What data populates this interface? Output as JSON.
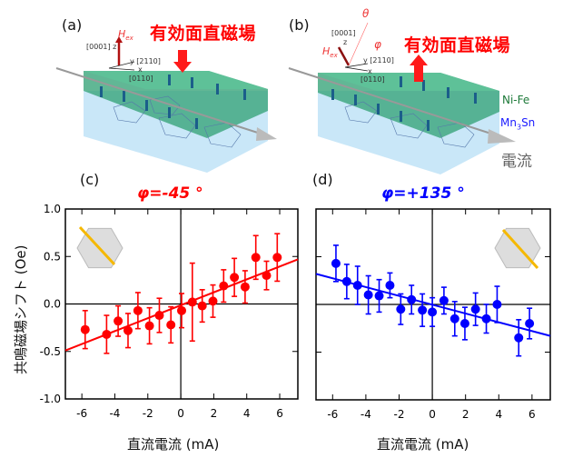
{
  "panels": {
    "a": {
      "label": "(a)",
      "field_label": "有効面直磁場",
      "hex_label": "H",
      "hex_sub": "ex",
      "axis_z": "[0001] z",
      "axis_y": "y [2110]",
      "axis_x": "x",
      "axis_x_dir": "[0110]"
    },
    "b": {
      "label": "(b)",
      "field_label": "有効面直磁場",
      "hex_label": "H",
      "hex_sub": "ex",
      "theta": "θ",
      "phi": "φ",
      "axis_z": "[0001]",
      "axis_z2": "z",
      "axis_y": "y [2110]",
      "axis_x": "x",
      "axis_x_dir": "[0110]",
      "layer_top": "Ni-Fe",
      "layer_bottom_main": "Mn",
      "layer_bottom_sub": "3",
      "layer_bottom_end": "Sn",
      "current_label": "電流"
    },
    "c": {
      "label": "(c)"
    },
    "d": {
      "label": "(d)"
    }
  },
  "colors": {
    "red": "#ff0000",
    "blue": "#0000ff",
    "nife": "#3aa57a",
    "mn3sn": "#bfe3f7",
    "arrow": "#f5b800"
  },
  "chart_data": [
    {
      "type": "scatter",
      "title": "φ=-45 °",
      "xlabel": "直流電流 (mA)",
      "ylabel": "共鳴磁場シフト (Oe)",
      "xlim": [
        -7,
        7.1
      ],
      "ylim": [
        -1.0,
        1.0
      ],
      "xticks": [
        -6,
        -4,
        -2,
        0,
        2,
        4,
        6
      ],
      "yticks": [
        -1.0,
        -0.5,
        0.0,
        0.5,
        1.0
      ],
      "ytick_labels": [
        "-1.0",
        "-0.5",
        "0.0",
        "0.5",
        "1.0"
      ],
      "color": "#ff0000",
      "x": [
        -5.8,
        -4.5,
        -3.8,
        -3.2,
        -2.6,
        -1.9,
        -1.3,
        -0.6,
        0.05,
        0.7,
        1.3,
        1.95,
        2.6,
        3.25,
        3.9,
        4.55,
        5.2,
        5.85
      ],
      "y": [
        -0.27,
        -0.32,
        -0.18,
        -0.28,
        -0.07,
        -0.23,
        -0.12,
        -0.22,
        -0.07,
        0.02,
        -0.02,
        0.03,
        0.19,
        0.28,
        0.18,
        0.49,
        0.3,
        0.49
      ],
      "yerr": [
        0.2,
        0.2,
        0.16,
        0.18,
        0.19,
        0.19,
        0.18,
        0.19,
        0.18,
        0.41,
        0.17,
        0.17,
        0.17,
        0.2,
        0.17,
        0.23,
        0.15,
        0.25
      ],
      "fit": {
        "x": [
          -7,
          7.1
        ],
        "y": [
          -0.49,
          0.47
        ]
      }
    },
    {
      "type": "scatter",
      "title": "φ=+135 °",
      "xlabel": "直流電流 (mA)",
      "ylabel": "",
      "xlim": [
        -7,
        7.1
      ],
      "ylim": [
        -1.0,
        1.0
      ],
      "xticks": [
        -6,
        -4,
        -2,
        0,
        2,
        4,
        6
      ],
      "yticks": [
        -1.0,
        -0.5,
        0.0,
        0.5,
        1.0
      ],
      "color": "#0000ff",
      "x": [
        -5.8,
        -5.15,
        -4.5,
        -3.85,
        -3.2,
        -2.55,
        -1.9,
        -1.25,
        -0.6,
        0.0,
        0.7,
        1.35,
        1.96,
        2.6,
        3.25,
        3.9,
        5.2,
        5.85
      ],
      "y": [
        0.43,
        0.24,
        0.2,
        0.1,
        0.09,
        0.2,
        -0.05,
        0.05,
        -0.06,
        -0.08,
        0.04,
        -0.15,
        -0.2,
        -0.05,
        -0.15,
        0.0,
        -0.35,
        -0.2
      ],
      "yerr": [
        0.19,
        0.18,
        0.2,
        0.2,
        0.17,
        0.13,
        0.16,
        0.15,
        0.17,
        0.15,
        0.14,
        0.18,
        0.17,
        0.17,
        0.15,
        0.19,
        0.19,
        0.16
      ],
      "fit": {
        "x": [
          -7,
          7.1
        ],
        "y": [
          0.32,
          -0.33
        ]
      }
    }
  ]
}
